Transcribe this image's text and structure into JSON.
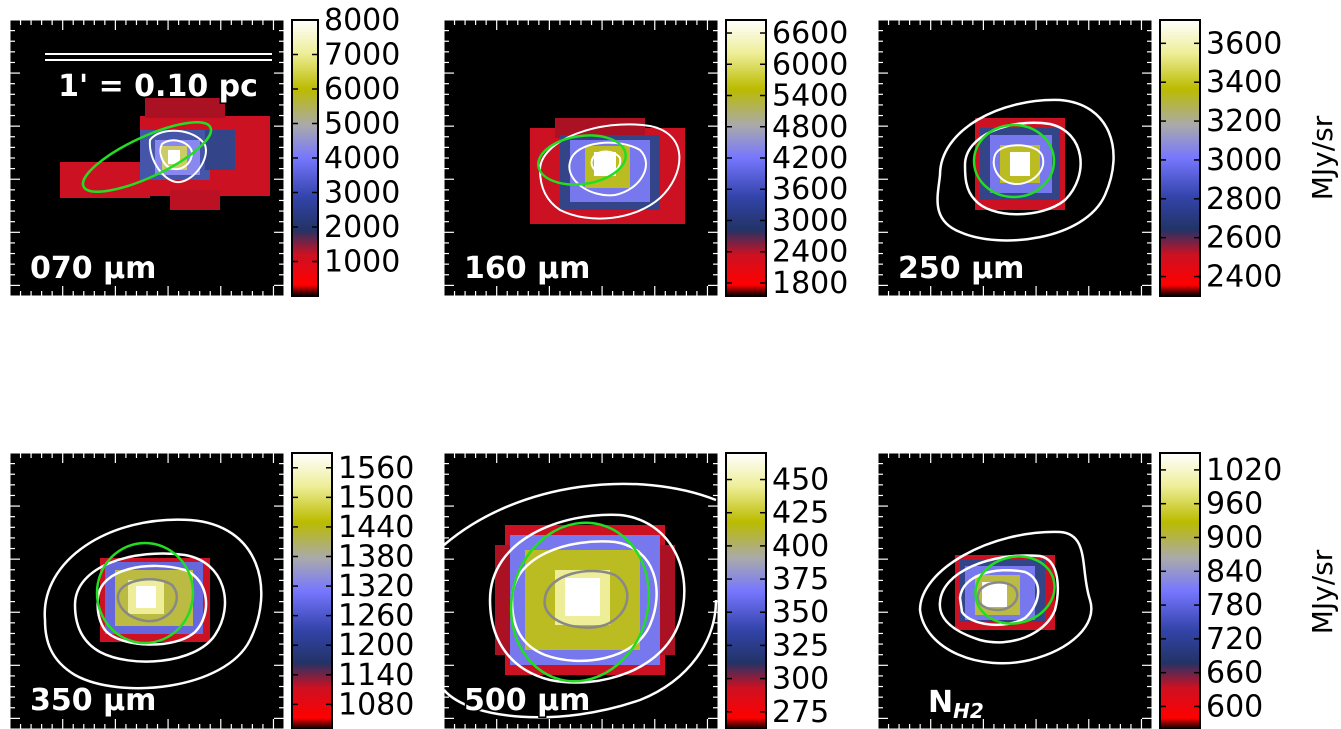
{
  "chart_data": [
    {
      "type": "heatmap",
      "band_label": "070 μm",
      "colorbar_ticks": [
        1000,
        2000,
        3000,
        4000,
        5000,
        6000,
        7000,
        8000
      ],
      "colorbar_range": [
        0,
        8000
      ],
      "scale_bar_label": "1' = 0.10 pc",
      "unit_label": ""
    },
    {
      "type": "heatmap",
      "band_label": "160 μm",
      "colorbar_ticks": [
        1800,
        2400,
        3000,
        3600,
        4200,
        4800,
        5400,
        6000,
        6600
      ],
      "colorbar_range": [
        1550,
        6850
      ],
      "unit_label": ""
    },
    {
      "type": "heatmap",
      "band_label": "250 μm",
      "colorbar_ticks": [
        2400,
        2600,
        2800,
        3000,
        3200,
        3400,
        3600
      ],
      "colorbar_range": [
        2300,
        3720
      ],
      "unit_label": "MJy/sr"
    },
    {
      "type": "heatmap",
      "band_label": "350 μm",
      "colorbar_ticks": [
        1080,
        1140,
        1200,
        1260,
        1320,
        1380,
        1440,
        1500,
        1560
      ],
      "colorbar_range": [
        1030,
        1590
      ],
      "unit_label": ""
    },
    {
      "type": "heatmap",
      "band_label": "500 μm",
      "colorbar_ticks": [
        275,
        300,
        325,
        350,
        375,
        400,
        425,
        450
      ],
      "colorbar_range": [
        262,
        470
      ],
      "unit_label": ""
    },
    {
      "type": "heatmap",
      "band_label": "N",
      "band_label_sub": "H2",
      "colorbar_ticks": [
        600,
        660,
        720,
        780,
        840,
        900,
        960,
        1020
      ],
      "colorbar_range": [
        560,
        1050
      ],
      "unit_label": "MJy/sr"
    }
  ],
  "colors": {
    "ellipse": "#22dd22",
    "contour": "#ffffff",
    "inner_contour": "#888888",
    "background": "#000000"
  }
}
